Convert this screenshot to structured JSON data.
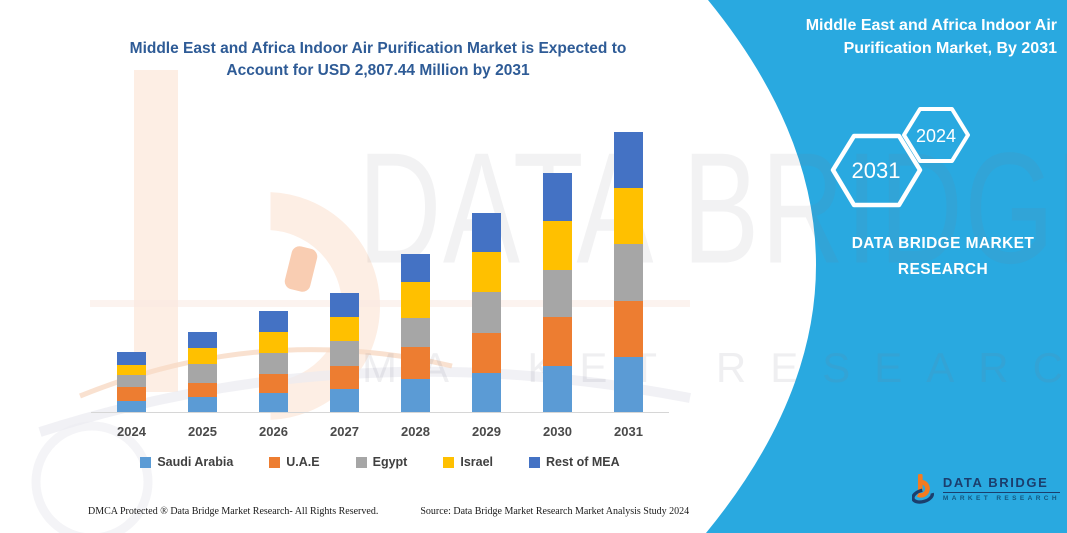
{
  "header": {
    "title_line1": "Middle East and Africa Indoor Air Purification Market is Expected to",
    "title_line2": "Account for USD 2,807.44 Million by 2031"
  },
  "right_panel": {
    "title_line1": "Middle East and Africa Indoor Air",
    "title_line2": "Purification Market, By 2031",
    "hexagon_primary": "2031",
    "hexagon_secondary": "2024",
    "brand_line1": "DATA BRIDGE MARKET",
    "brand_line2": "RESEARCH"
  },
  "watermark": {
    "line1": "DATA BRIDGE",
    "line2": "MARKET RESEARCH"
  },
  "logo": {
    "title": "DATA BRIDGE",
    "subtitle": "MARKET RESEARCH"
  },
  "footer": {
    "dmca": "DMCA Protected ® Data Bridge Market Research-  All Rights Reserved.",
    "source": "Source: Data Bridge Market Research  Market Analysis Study 2024"
  },
  "colors": {
    "cyan_panel": "#29A9E0",
    "title_blue": "#2E5B96",
    "logo_navy": "#1B3E6D",
    "logo_orange": "#F47B20",
    "axis_gray": "#D6D6D6"
  },
  "chart_data": {
    "type": "bar",
    "stacked": true,
    "title": "Middle East and Africa Indoor Air Purification Market is Expected to Account for USD 2,807.44 Million by 2031",
    "unit": "USD Million",
    "xlabel": "",
    "ylabel": "",
    "value_axis_visible": false,
    "gridlines": false,
    "legend_position": "bottom",
    "highlight_total_2031": 2807.44,
    "categories": [
      "2024",
      "2025",
      "2026",
      "2027",
      "2028",
      "2029",
      "2030",
      "2031"
    ],
    "series": [
      {
        "name": "Saudi Arabia",
        "color": "#5B9BD5",
        "values": [
          113,
          154,
          195,
          229,
          336,
          388,
          466,
          551
        ]
      },
      {
        "name": "U.A.E",
        "color": "#ED7D31",
        "values": [
          137,
          134,
          185,
          229,
          313,
          408,
          483,
          558
        ]
      },
      {
        "name": "Egypt",
        "color": "#A6A6A6",
        "values": [
          120,
          191,
          212,
          260,
          296,
          405,
          472,
          576
        ]
      },
      {
        "name": "Israel",
        "color": "#FFC000",
        "values": [
          103,
          158,
          209,
          235,
          360,
          405,
          489,
          558
        ]
      },
      {
        "name": "Rest of MEA",
        "color": "#4472C4",
        "values": [
          127,
          168,
          209,
          242,
          285,
          394,
          485,
          564.44
        ]
      }
    ],
    "totals_by_year": [
      600,
      805,
      1010,
      1195,
      1590,
      2000,
      2395,
      2807.44
    ]
  }
}
